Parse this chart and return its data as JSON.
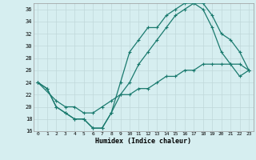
{
  "xlabel": "Humidex (Indice chaleur)",
  "background_color": "#d6eef0",
  "grid_color": "#c0d8da",
  "line_color": "#1a7a6e",
  "xlim": [
    -0.5,
    23.5
  ],
  "ylim": [
    16,
    37
  ],
  "xticks": [
    0,
    1,
    2,
    3,
    4,
    5,
    6,
    7,
    8,
    9,
    10,
    11,
    12,
    13,
    14,
    15,
    16,
    17,
    18,
    19,
    20,
    21,
    22,
    23
  ],
  "yticks": [
    16,
    18,
    20,
    22,
    24,
    26,
    28,
    30,
    32,
    34,
    36
  ],
  "line1_x": [
    0,
    1,
    2,
    3,
    4,
    5,
    6,
    7,
    8,
    9,
    10,
    11,
    12,
    13,
    14,
    15,
    16,
    17,
    18,
    19,
    20,
    21,
    22,
    23
  ],
  "line1_y": [
    24,
    23,
    20,
    19,
    18,
    18,
    16.5,
    16.5,
    19,
    24,
    29,
    31,
    33,
    33,
    35,
    36,
    37,
    37,
    37,
    35,
    32,
    31,
    29,
    26
  ],
  "line2_x": [
    0,
    2,
    3,
    4,
    5,
    6,
    7,
    8,
    9,
    10,
    11,
    12,
    13,
    14,
    15,
    16,
    17,
    18,
    19,
    20,
    21,
    22,
    23
  ],
  "line2_y": [
    24,
    21,
    20,
    20,
    19,
    19,
    20,
    21,
    22,
    22,
    23,
    23,
    24,
    25,
    25,
    26,
    26,
    27,
    27,
    27,
    27,
    27,
    26
  ],
  "line3_x": [
    0,
    1,
    2,
    3,
    4,
    5,
    6,
    7,
    8,
    9,
    10,
    11,
    12,
    13,
    14,
    15,
    16,
    17,
    18,
    19,
    20,
    21,
    22,
    23
  ],
  "line3_y": [
    24,
    23,
    20,
    19,
    18,
    18,
    16.5,
    16.5,
    19,
    22,
    24,
    27,
    29,
    31,
    33,
    35,
    36,
    37,
    36,
    33,
    29,
    27,
    25,
    26
  ]
}
